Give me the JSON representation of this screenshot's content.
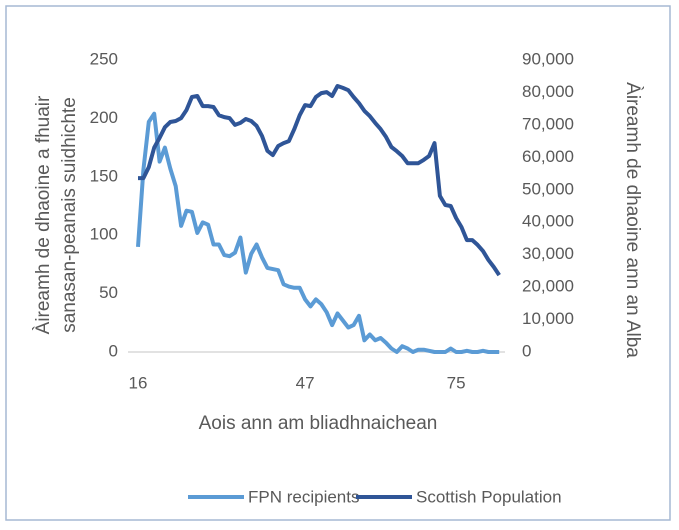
{
  "chart_data": {
    "type": "line",
    "y_label": [
      "Àireamh de dhaoine a fhuair",
      "sanasan-peanais suidhichte"
    ],
    "y2_label": "Àireamh de dhaoine ann an Alba",
    "x_label": "Aois ann am bliadhnaichean",
    "x": [
      16,
      17,
      18,
      19,
      20,
      21,
      22,
      23,
      24,
      25,
      26,
      27,
      28,
      29,
      30,
      31,
      32,
      33,
      34,
      35,
      36,
      37,
      38,
      39,
      40,
      41,
      42,
      43,
      44,
      45,
      46,
      47,
      48,
      49,
      50,
      51,
      52,
      53,
      54,
      55,
      56,
      57,
      58,
      59,
      60,
      61,
      62,
      63,
      64,
      65,
      66,
      67,
      68,
      69,
      70,
      71,
      72,
      73,
      74,
      75,
      76,
      77,
      78,
      79,
      80,
      81,
      82,
      83
    ],
    "xlim": [
      15,
      84
    ],
    "xticks": [
      16,
      47,
      75
    ],
    "ylim": [
      0,
      250
    ],
    "yticks": [
      0,
      50,
      100,
      150,
      200,
      250
    ],
    "y2lim": [
      0,
      90000
    ],
    "y2ticks": [
      0,
      {
        "value": 10000,
        "label": "10,000"
      },
      {
        "value": 20000,
        "label": "20,000"
      },
      {
        "value": 30000,
        "label": "30,000"
      },
      {
        "value": 40000,
        "label": "40,000"
      },
      {
        "value": 50000,
        "label": "50,000"
      },
      {
        "value": 60000,
        "label": "60,000"
      },
      {
        "value": 70000,
        "label": "70,000"
      },
      {
        "value": 80000,
        "label": "80,000"
      },
      {
        "value": 90000,
        "label": "90,000"
      }
    ],
    "legend": "bottom",
    "series": [
      {
        "name": "FPN recipients",
        "color": "#5b9bd5",
        "values": [
          90,
          156,
          197,
          204,
          163,
          175,
          157,
          142,
          108,
          121,
          120,
          102,
          111,
          109,
          92,
          92,
          83,
          82,
          85,
          98,
          68,
          84,
          92,
          81,
          72,
          71,
          70,
          58,
          56,
          55,
          55,
          45,
          39,
          45,
          41,
          34,
          23,
          33,
          27,
          21,
          23,
          31,
          10,
          15,
          10,
          12,
          8,
          3,
          0,
          5,
          3,
          0,
          2,
          2,
          1,
          0,
          0,
          0,
          3,
          0,
          0,
          1,
          0,
          0,
          1,
          0,
          0,
          0
        ]
      },
      {
        "name": "Scottish Population",
        "color": "#2f5597",
        "axis": "y2",
        "values": [
          53600,
          53600,
          57000,
          63000,
          66000,
          69300,
          70900,
          71200,
          72100,
          74600,
          78600,
          78900,
          75800,
          75800,
          75500,
          73000,
          72400,
          72100,
          70000,
          70600,
          71800,
          71200,
          69700,
          66600,
          62000,
          60700,
          63500,
          64400,
          65000,
          68700,
          73000,
          76100,
          75800,
          78600,
          79800,
          80100,
          78900,
          82000,
          81400,
          80700,
          78600,
          76700,
          74300,
          72700,
          70600,
          68700,
          66300,
          63200,
          61900,
          60400,
          58200,
          58200,
          58200,
          59200,
          60400,
          64400,
          48100,
          45300,
          45000,
          41300,
          38500,
          34500,
          34500,
          33000,
          31100,
          28400,
          26200,
          23700
        ]
      }
    ]
  }
}
